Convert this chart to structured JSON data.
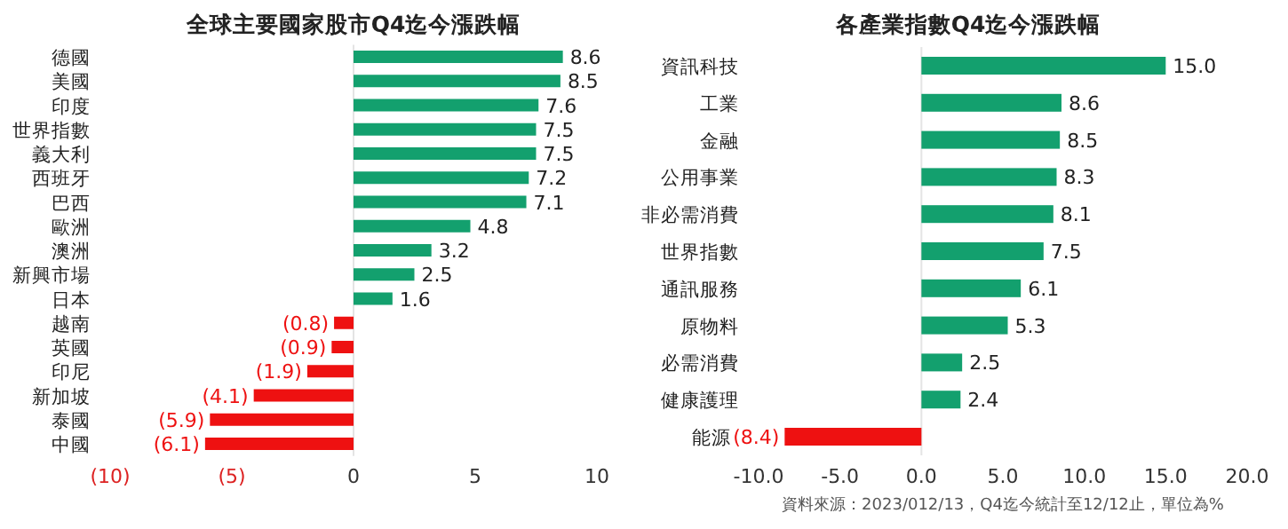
{
  "chart_data": [
    {
      "type": "bar",
      "orientation": "horizontal",
      "title": "全球主要國家股市Q4迄今漲跌幅",
      "categories": [
        "德國",
        "美國",
        "印度",
        "世界指數",
        "義大利",
        "西班牙",
        "巴西",
        "歐洲",
        "澳洲",
        "新興市場",
        "日本",
        "越南",
        "英國",
        "印尼",
        "新加坡",
        "泰國",
        "中國"
      ],
      "values": [
        8.6,
        8.5,
        7.6,
        7.5,
        7.5,
        7.2,
        7.1,
        4.8,
        3.2,
        2.5,
        1.6,
        -0.8,
        -0.9,
        -1.9,
        -4.1,
        -5.9,
        -6.1
      ],
      "colors": [
        "#13a06e",
        "#13a06e",
        "#13a06e",
        "#13a06e",
        "#13a06e",
        "#13a06e",
        "#13a06e",
        "#13a06e",
        "#13a06e",
        "#13a06e",
        "#13a06e",
        "#ee1111",
        "#ee1111",
        "#ee1111",
        "#ee1111",
        "#ee1111",
        "#ee1111"
      ],
      "value_labels": [
        "8.6",
        "8.5",
        "7.6",
        "7.5",
        "7.5",
        "7.2",
        "7.1",
        "4.8",
        "3.2",
        "2.5",
        "1.6",
        "(0.8)",
        "(0.9)",
        "(1.9)",
        "(4.1)",
        "(5.9)",
        "(6.1)"
      ],
      "xlim": [
        -10,
        10
      ],
      "xticks": [
        {
          "value": -10,
          "label": "(10)"
        },
        {
          "value": -5,
          "label": "(5)"
        },
        0,
        5,
        10
      ]
    },
    {
      "type": "bar",
      "orientation": "horizontal",
      "title": "各產業指數Q4迄今漲跌幅",
      "categories": [
        "資訊科技",
        "工業",
        "金融",
        "公用事業",
        "非必需消費",
        "世界指數",
        "通訊服務",
        "原物料",
        "必需消費",
        "健康護理",
        "能源"
      ],
      "values": [
        15.0,
        8.6,
        8.5,
        8.3,
        8.1,
        7.5,
        6.1,
        5.3,
        2.5,
        2.4,
        -8.4
      ],
      "colors": [
        "#13a06e",
        "#13a06e",
        "#13a06e",
        "#13a06e",
        "#13a06e",
        "#13a06e",
        "#13a06e",
        "#13a06e",
        "#13a06e",
        "#13a06e",
        "#ee1111"
      ],
      "value_labels": [
        "15.0",
        "8.6",
        "8.5",
        "8.3",
        "8.1",
        "7.5",
        "6.1",
        "5.3",
        "2.5",
        "2.4",
        "(8.4)"
      ],
      "xlim": [
        -10,
        20
      ],
      "xticks": [
        {
          "value": -10,
          "label": "-10.0"
        },
        {
          "value": -5,
          "label": "-5.0"
        },
        {
          "value": 0,
          "label": "0.0"
        },
        {
          "value": 5,
          "label": "5.0"
        },
        {
          "value": 10,
          "label": "10.0"
        },
        {
          "value": 15,
          "label": "15.0"
        },
        {
          "value": 20,
          "label": "20.0"
        }
      ],
      "annotations": [
        "資料來源：2023/012/13，Q4迄今統計至12/12止，單位為%"
      ]
    }
  ]
}
